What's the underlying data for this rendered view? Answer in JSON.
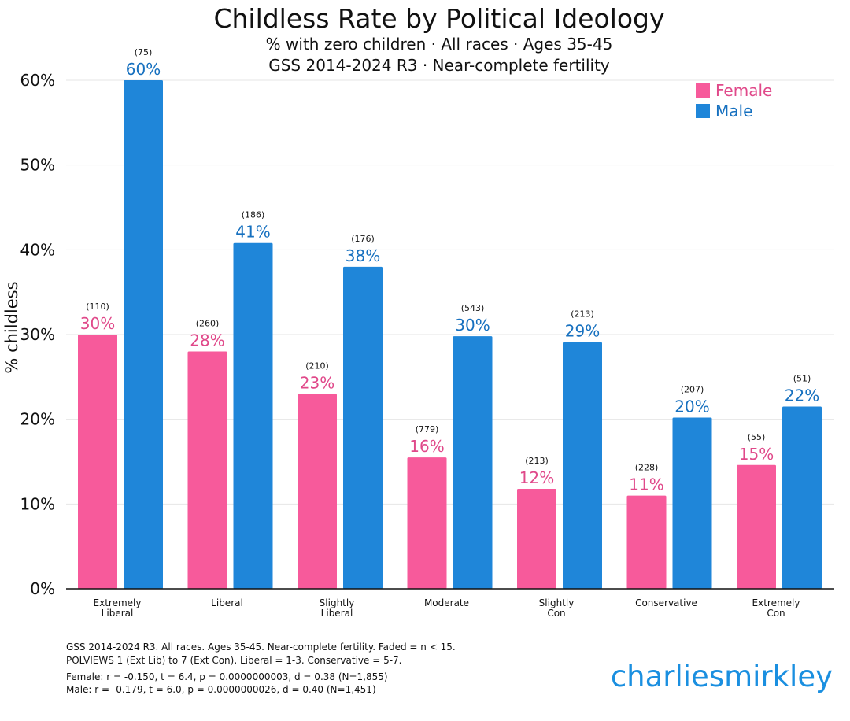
{
  "header": {
    "title": "Childless Rate by Political Ideology",
    "subtitle1": "% with zero children · All races · Ages 35-45",
    "subtitle2": "GSS 2014-2024 R3 · Near-complete fertility"
  },
  "chart_data": {
    "type": "bar",
    "categories": [
      [
        "Extremely",
        "Liberal"
      ],
      [
        "Liberal"
      ],
      [
        "Slightly",
        "Liberal"
      ],
      [
        "Moderate"
      ],
      [
        "Slightly",
        "Con"
      ],
      [
        "Conservative"
      ],
      [
        "Extremely",
        "Con"
      ]
    ],
    "series": [
      {
        "name": "Female",
        "color": "#f75a9b",
        "label_color": "#e0498a",
        "values": [
          30,
          28,
          23,
          15.5,
          11.8,
          11,
          14.6
        ],
        "labels": [
          "30%",
          "28%",
          "23%",
          "16%",
          "12%",
          "11%",
          "15%"
        ],
        "n": [
          "(110)",
          "(260)",
          "(210)",
          "(779)",
          "(213)",
          "(228)",
          "(55)"
        ]
      },
      {
        "name": "Male",
        "color": "#1f86d9",
        "label_color": "#1670bf",
        "values": [
          60,
          40.8,
          38,
          29.8,
          29.1,
          20.2,
          21.5
        ],
        "labels": [
          "60%",
          "41%",
          "38%",
          "30%",
          "29%",
          "20%",
          "22%"
        ],
        "n": [
          "(75)",
          "(186)",
          "(176)",
          "(543)",
          "(213)",
          "(207)",
          "(51)"
        ]
      }
    ],
    "ylabel": "% childless",
    "xlabel": "",
    "ylim": [
      0,
      60
    ],
    "yticks": [
      0,
      10,
      20,
      30,
      40,
      50,
      60
    ],
    "ytick_labels": [
      "0%",
      "10%",
      "20%",
      "30%",
      "40%",
      "50%",
      "60%"
    ],
    "grid": true,
    "legend_position": "top-right"
  },
  "footnotes": {
    "line1": "GSS 2014-2024 R3. All races. Ages 35-45. Near-complete fertility. Faded = n < 15.",
    "line2": "POLVIEWS 1 (Ext Lib) to 7 (Ext Con). Liberal = 1-3. Conservative = 5-7.",
    "line3": "Female: r = -0.150, t = 6.4, p = 0.0000000003, d = 0.38 (N=1,855)",
    "line4": "Male: r = -0.179, t = 6.0, p = 0.0000000026, d = 0.40 (N=1,451)"
  },
  "brand": "charliesmirkley"
}
